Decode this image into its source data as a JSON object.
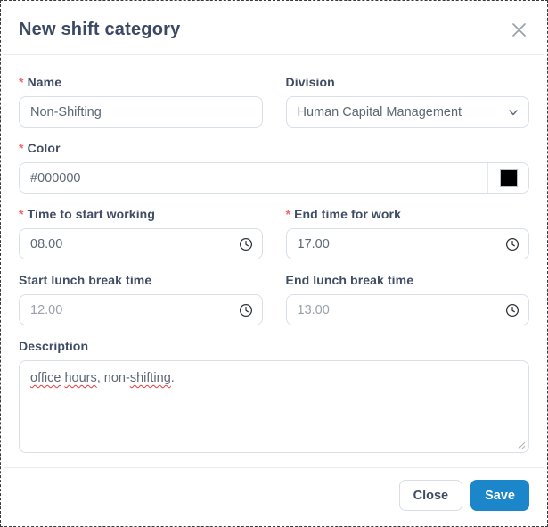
{
  "modal": {
    "title": "New shift category"
  },
  "fields": {
    "name": {
      "label": "Name",
      "required_mark": "*",
      "value": "Non-Shifting"
    },
    "division": {
      "label": "Division",
      "value": "Human Capital Management"
    },
    "color": {
      "label": "Color",
      "required_mark": "*",
      "value": "#000000",
      "swatch_hex": "#000000"
    },
    "start_work": {
      "label": "Time to start working",
      "required_mark": "*",
      "value": "08.00"
    },
    "end_work": {
      "label": "End time for work",
      "required_mark": "*",
      "value": "17.00"
    },
    "lunch_start": {
      "label": "Start lunch break time",
      "value": "12.00"
    },
    "lunch_end": {
      "label": "End lunch break time",
      "value": "13.00"
    },
    "description": {
      "label": "Description",
      "value": "office hours, non-shifting.",
      "segments": [
        {
          "text": "office",
          "misspelled": true
        },
        {
          "text": " ",
          "misspelled": false
        },
        {
          "text": "hours",
          "misspelled": true
        },
        {
          "text": ", non-",
          "misspelled": false
        },
        {
          "text": "shifting",
          "misspelled": true
        },
        {
          "text": ".",
          "misspelled": false
        }
      ]
    }
  },
  "footer": {
    "close_label": "Close",
    "save_label": "Save"
  },
  "icons": {
    "close": "x-icon",
    "chevron": "chevron-down-icon",
    "clock": "clock-icon",
    "resize": "resize-handle-icon"
  },
  "colors": {
    "accent_blue": "#1b86c9",
    "title_text": "#3b4a63",
    "label_text": "#3f4c63",
    "required_mark": "#f16a6a",
    "input_border": "#d9dfe7",
    "input_text": "#5d6776",
    "muted_input_text": "#9aa1ac",
    "divider": "#e9ecef",
    "misspell_underline": "#e23b3b",
    "swatch": "#000000"
  }
}
